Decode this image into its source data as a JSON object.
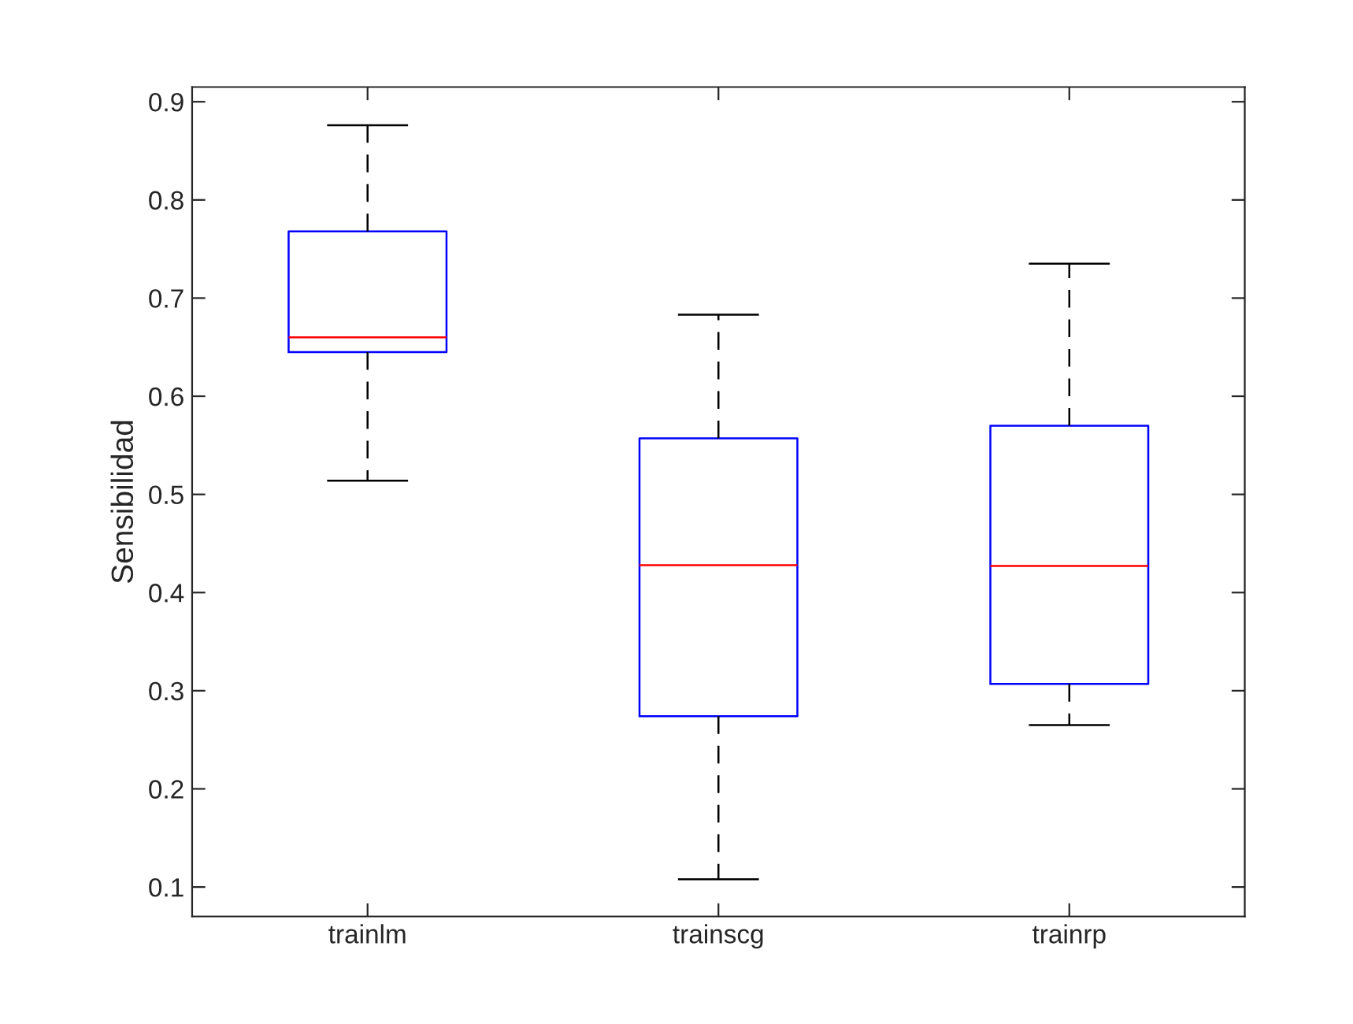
{
  "chart_data": {
    "type": "box",
    "ylabel": "Sensibilidad",
    "categories": [
      "trainlm",
      "trainscg",
      "trainrp"
    ],
    "boxes": [
      {
        "low": 0.514,
        "q1": 0.645,
        "median": 0.66,
        "q3": 0.768,
        "high": 0.876
      },
      {
        "low": 0.108,
        "q1": 0.274,
        "median": 0.428,
        "q3": 0.557,
        "high": 0.683
      },
      {
        "low": 0.265,
        "q1": 0.307,
        "median": 0.427,
        "q3": 0.57,
        "high": 0.735
      }
    ],
    "color": "#0000ff",
    "ylim": [
      0.07,
      0.915
    ],
    "yticks": [
      0.1,
      0.2,
      0.3,
      0.4,
      0.5,
      0.6,
      0.7,
      0.8,
      0.9
    ],
    "grid": false
  }
}
